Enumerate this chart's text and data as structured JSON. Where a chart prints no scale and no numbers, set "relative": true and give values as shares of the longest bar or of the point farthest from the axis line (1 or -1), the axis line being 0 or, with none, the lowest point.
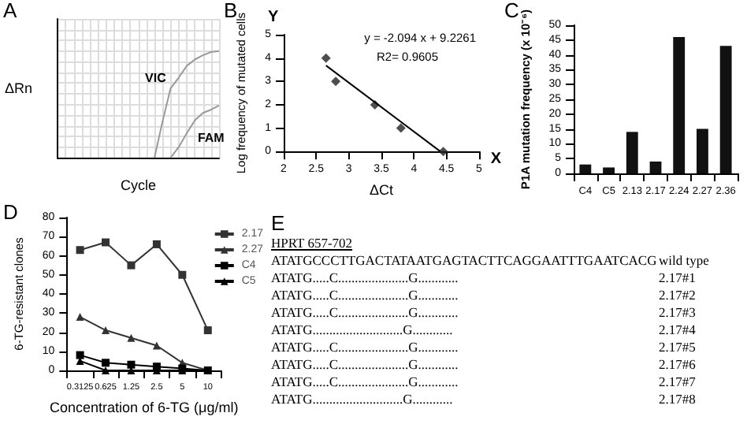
{
  "chart_data": [
    {
      "type": "line",
      "title": "A",
      "xlabel": "Cycle",
      "ylabel": "ΔRn",
      "relative": true,
      "grid": true,
      "marker": "none",
      "categories": [
        null,
        null,
        null,
        null,
        null,
        null,
        null,
        null,
        null,
        null,
        null,
        null,
        null,
        null,
        null,
        null,
        null,
        null,
        null,
        null,
        null
      ],
      "series": [
        {
          "name": "VIC",
          "color": "#999999",
          "values": [
            null,
            null,
            null,
            null,
            null,
            null,
            null,
            null,
            null,
            null,
            null,
            null,
            0,
            0.34,
            0.65,
            0.75,
            0.86,
            0.92,
            0.96,
            0.99,
            1
          ]
        },
        {
          "name": "FAM",
          "color": "#999999",
          "values": [
            null,
            null,
            null,
            null,
            null,
            null,
            null,
            null,
            null,
            null,
            null,
            null,
            null,
            null,
            0,
            0.1,
            0.23,
            0.35,
            0.42,
            0.45,
            0.49
          ]
        }
      ]
    },
    {
      "type": "scatter",
      "title": "B",
      "xlabel": "ΔCt",
      "ylabel": "Log frequency of mutated cells",
      "marker": "diamond",
      "xlim": [
        2,
        5
      ],
      "xticks": [
        2,
        2.5,
        3,
        3.5,
        4,
        4.5,
        5
      ],
      "ylim": [
        0,
        5
      ],
      "yticks": [
        0,
        1,
        2,
        3,
        4,
        5
      ],
      "annotations": [
        "y = -2.094 x + 9.2261",
        "R2= 0.9605",
        "Y",
        "X"
      ],
      "series": [
        {
          "color": "#222222",
          "x": [
            2.65,
            2.8,
            3.4,
            3.8,
            4.45
          ],
          "values": [
            4.0,
            3.0,
            2.0,
            1.0,
            0
          ]
        },
        {
          "type": "line",
          "marker": "none",
          "color": "#000000",
          "x": [
            2.65,
            4.4
          ],
          "values": [
            3.68,
            0.01
          ]
        }
      ]
    },
    {
      "type": "bar",
      "title": "C",
      "ylabel": "P1A mutation frequency (x 10⁻⁶)",
      "color": "#111111",
      "categories": [
        "C4",
        "C5",
        "2.13",
        "2.17",
        "2.24",
        "2.27",
        "2.36"
      ],
      "values": [
        3,
        2,
        14,
        4,
        46,
        15,
        43
      ],
      "ylim": [
        0,
        50
      ],
      "yticks": [
        0,
        5,
        10,
        15,
        20,
        25,
        30,
        35,
        40,
        45,
        50
      ]
    },
    {
      "type": "line",
      "title": "D",
      "xlabel": "Concentration of 6-TG (μg/ml)",
      "ylabel": "6-TG-resistant clones",
      "legend": "top right",
      "categories": [
        "0.3125",
        "0.625",
        "1.25",
        "2.5",
        "5",
        "10"
      ],
      "ylim": [
        0,
        80
      ],
      "yticks": [
        0,
        10,
        20,
        30,
        40,
        50,
        60,
        70,
        80
      ],
      "series": [
        {
          "name": "2.17",
          "color": "#333333",
          "marker": "square",
          "values": [
            63,
            67,
            55,
            66,
            50,
            21
          ]
        },
        {
          "name": "2.27",
          "color": "#333333",
          "marker": "triangle",
          "values": [
            28,
            21,
            17,
            13,
            4,
            0
          ]
        },
        {
          "name": "C4",
          "color": "#000000",
          "marker": "square",
          "values": [
            8,
            4,
            3,
            2,
            1,
            0
          ]
        },
        {
          "name": "C5",
          "color": "#000000",
          "marker": "triangle",
          "values": [
            5,
            0,
            0,
            0,
            0,
            0
          ]
        }
      ]
    },
    {
      "type": "other",
      "title": "E",
      "categories": [
        "wild type",
        "2.17#1",
        "2.17#2",
        "2.17#3",
        "2.17#4",
        "2.17#5",
        "2.17#6",
        "2.17#7",
        "2.17#8"
      ],
      "annotations": [
        "HPRT 657-702",
        "ATATGCCCTTGACTATAATGAGTACTTCAGGAATTTGAATCACG",
        "ATATG.....C.....................G............",
        "ATATG.....C.....................G............",
        "ATATG.....C.....................G............",
        "ATATG...........................G............",
        "ATATG.....C.....................G............",
        "ATATG.....C.....................G............",
        "ATATG.....C.....................G............",
        "ATATG...........................G............"
      ]
    }
  ]
}
